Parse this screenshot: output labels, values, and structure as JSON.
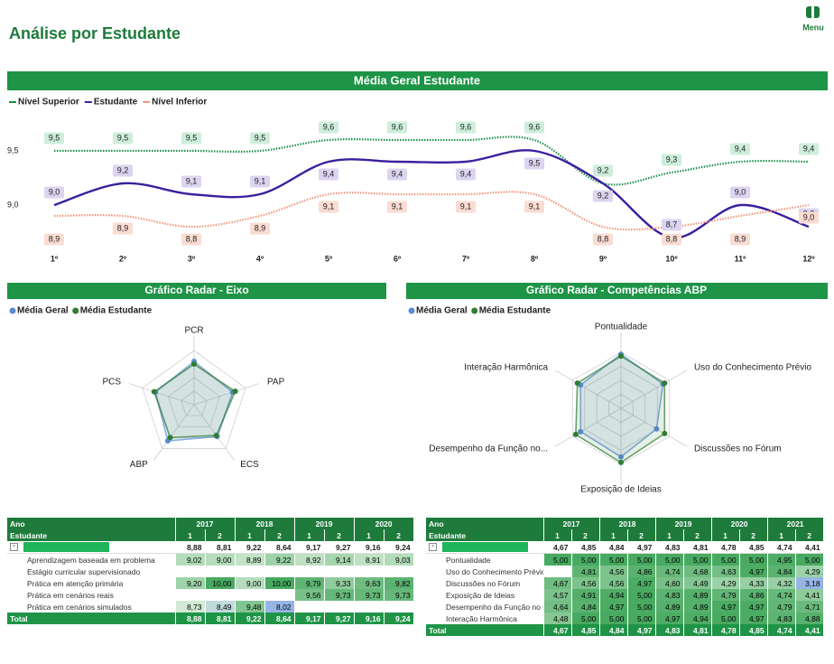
{
  "header": {
    "title": "Análise por Estudante",
    "menu": "Menu"
  },
  "chart_data": [
    {
      "type": "line",
      "title": "Média Geral Estudante",
      "categories": [
        "1º",
        "2º",
        "3º",
        "4º",
        "5º",
        "6º",
        "7º",
        "8º",
        "9º",
        "10º",
        "11º",
        "12º"
      ],
      "series": [
        {
          "name": "Nível Superior",
          "color": "#1a8f4a",
          "style": "dotted",
          "label_color": "#cdeedb",
          "values": [
            9.5,
            9.5,
            9.5,
            9.5,
            9.6,
            9.6,
            9.6,
            9.6,
            9.2,
            9.3,
            9.4,
            9.4
          ],
          "value_labels": [
            "9,5",
            "9,5",
            "9,5",
            "9,5",
            "9,6",
            "9,6",
            "9,6",
            "9,6",
            "9,2",
            "9,3",
            "9,4",
            "9,4"
          ]
        },
        {
          "name": "Estudante",
          "color": "#3b1f9e",
          "style": "solid",
          "label_color": "#dcd4f0",
          "values": [
            9.0,
            9.2,
            9.1,
            9.1,
            9.4,
            9.4,
            9.4,
            9.5,
            9.2,
            8.7,
            9.0,
            8.8
          ],
          "value_labels": [
            "9,0",
            "9,2",
            "9,1",
            "9,1",
            "9,4",
            "9,4",
            "9,4",
            "9,5",
            "9,2",
            "8,7",
            "9,0",
            "8,8"
          ]
        },
        {
          "name": "Nível Inferior",
          "color": "#f0957a",
          "style": "dotted",
          "label_color": "#fadcd2",
          "values": [
            8.9,
            8.9,
            8.8,
            8.9,
            9.1,
            9.1,
            9.1,
            9.1,
            8.8,
            8.8,
            8.9,
            9.0
          ],
          "value_labels": [
            "8,9",
            "8,9",
            "8,8",
            "8,9",
            "9,1",
            "9,1",
            "9,1",
            "9,1",
            "8,8",
            "8,8",
            "8,9",
            "9,0"
          ]
        }
      ],
      "ylim": [
        8.65,
        9.7
      ],
      "yticks": [
        {
          "value": 9.0,
          "label": "9,0"
        },
        {
          "value": 9.5,
          "label": "9,5"
        }
      ],
      "grid": false
    },
    {
      "type": "radar",
      "title": "Gráfico Radar - Eixo",
      "axes": [
        "PCR",
        "PAP",
        "ECS",
        "ABP",
        "PCS"
      ],
      "rlim": [
        6,
        10
      ],
      "series": [
        {
          "name": "Média Geral",
          "color": "#5b8bd6",
          "values": [
            9.2,
            9.0,
            8.9,
            9.3,
            9.0
          ]
        },
        {
          "name": "Média Estudante",
          "color": "#2e7d32",
          "values": [
            9.0,
            9.2,
            8.8,
            9.0,
            9.1
          ]
        }
      ]
    },
    {
      "type": "radar",
      "title": "Gráfico Radar - Competências ABP",
      "axes": [
        "Pontualidade",
        "Uso do Conhecimento Prévio",
        "Discussões no Fórum",
        "Exposição de Ideias",
        "Desempenho da Função no...",
        "Interação Harmônica"
      ],
      "rlim": [
        2,
        5
      ],
      "series": [
        {
          "name": "Média Geral",
          "color": "#5b8bd6",
          "values": [
            4.9,
            4.6,
            4.2,
            4.6,
            4.5,
            4.5
          ]
        },
        {
          "name": "Média Estudante",
          "color": "#2e7d32",
          "values": [
            4.8,
            4.7,
            4.7,
            4.9,
            4.8,
            4.7
          ]
        }
      ]
    }
  ],
  "tables": [
    {
      "corner": [
        "Ano",
        "Estudante"
      ],
      "years": [
        "2017",
        "2018",
        "2019",
        "2020"
      ],
      "semesters": [
        "1",
        "2"
      ],
      "group": {
        "values": [
          "8,88",
          "8,81",
          "9,22",
          "8,64",
          "9,17",
          "9,27",
          "9,16",
          "9,24"
        ]
      },
      "rows": [
        {
          "label": "Aprendizagem baseada em problema",
          "values": [
            "9,02",
            "9,00",
            "8,89",
            "9,22",
            "8,92",
            "9,14",
            "8,91",
            "9,03"
          ]
        },
        {
          "label": "Estágio curricular supervisionado",
          "values": [
            null,
            null,
            null,
            null,
            null,
            null,
            null,
            null
          ]
        },
        {
          "label": "Prática em atenção primária",
          "values": [
            "9,20",
            "10,00",
            "9,00",
            "10,00",
            "9,79",
            "9,33",
            "9,63",
            "9,82"
          ]
        },
        {
          "label": "Prática em cenários reais",
          "values": [
            null,
            null,
            null,
            null,
            "9,56",
            "9,73",
            "9,73",
            "9,73"
          ]
        },
        {
          "label": "Prática em cenários simulados",
          "values": [
            "8,73",
            "8,49",
            "9,48",
            "8,02",
            null,
            null,
            null,
            null
          ]
        }
      ],
      "total": {
        "label": "Total",
        "values": [
          "8,88",
          "8,81",
          "9,22",
          "8,64",
          "9,17",
          "9,27",
          "9,16",
          "9,24"
        ]
      }
    },
    {
      "corner": [
        "Ano",
        "Estudante"
      ],
      "years": [
        "2017",
        "2018",
        "2019",
        "2020",
        "2021"
      ],
      "semesters": [
        "1",
        "2"
      ],
      "group": {
        "values": [
          "4,67",
          "4,85",
          "4,84",
          "4,97",
          "4,83",
          "4,81",
          "4,78",
          "4,85",
          "4,74",
          "4,41"
        ]
      },
      "rows": [
        {
          "label": "Pontualidade",
          "values": [
            "5,00",
            "5,00",
            "5,00",
            "5,00",
            "5,00",
            "5,00",
            "5,00",
            "5,00",
            "4,95",
            "5,00"
          ]
        },
        {
          "label": "Uso do Conhecimento Prévio",
          "values": [
            null,
            "4,81",
            "4,56",
            "4,86",
            "4,74",
            "4,68",
            "4,63",
            "4,97",
            "4,84",
            "4,29"
          ]
        },
        {
          "label": "Discussões no Fórum",
          "values": [
            "4,67",
            "4,56",
            "4,56",
            "4,97",
            "4,60",
            "4,49",
            "4,29",
            "4,33",
            "4,32",
            "3,18"
          ]
        },
        {
          "label": "Exposição de Ideias",
          "values": [
            "4,57",
            "4,91",
            "4,94",
            "5,00",
            "4,83",
            "4,89",
            "4,79",
            "4,86",
            "4,74",
            "4,41"
          ]
        },
        {
          "label": "Desempenho da Função no Grupo",
          "values": [
            "4,64",
            "4,84",
            "4,97",
            "5,00",
            "4,89",
            "4,89",
            "4,97",
            "4,97",
            "4,79",
            "4,71"
          ]
        },
        {
          "label": "Interação Harmônica",
          "values": [
            "4,48",
            "5,00",
            "5,00",
            "5,00",
            "4,97",
            "4,94",
            "5,00",
            "4,97",
            "4,83",
            "4,88"
          ]
        }
      ],
      "total": {
        "label": "Total",
        "values": [
          "4,67",
          "4,85",
          "4,84",
          "4,97",
          "4,83",
          "4,81",
          "4,78",
          "4,85",
          "4,74",
          "4,41"
        ]
      }
    }
  ]
}
